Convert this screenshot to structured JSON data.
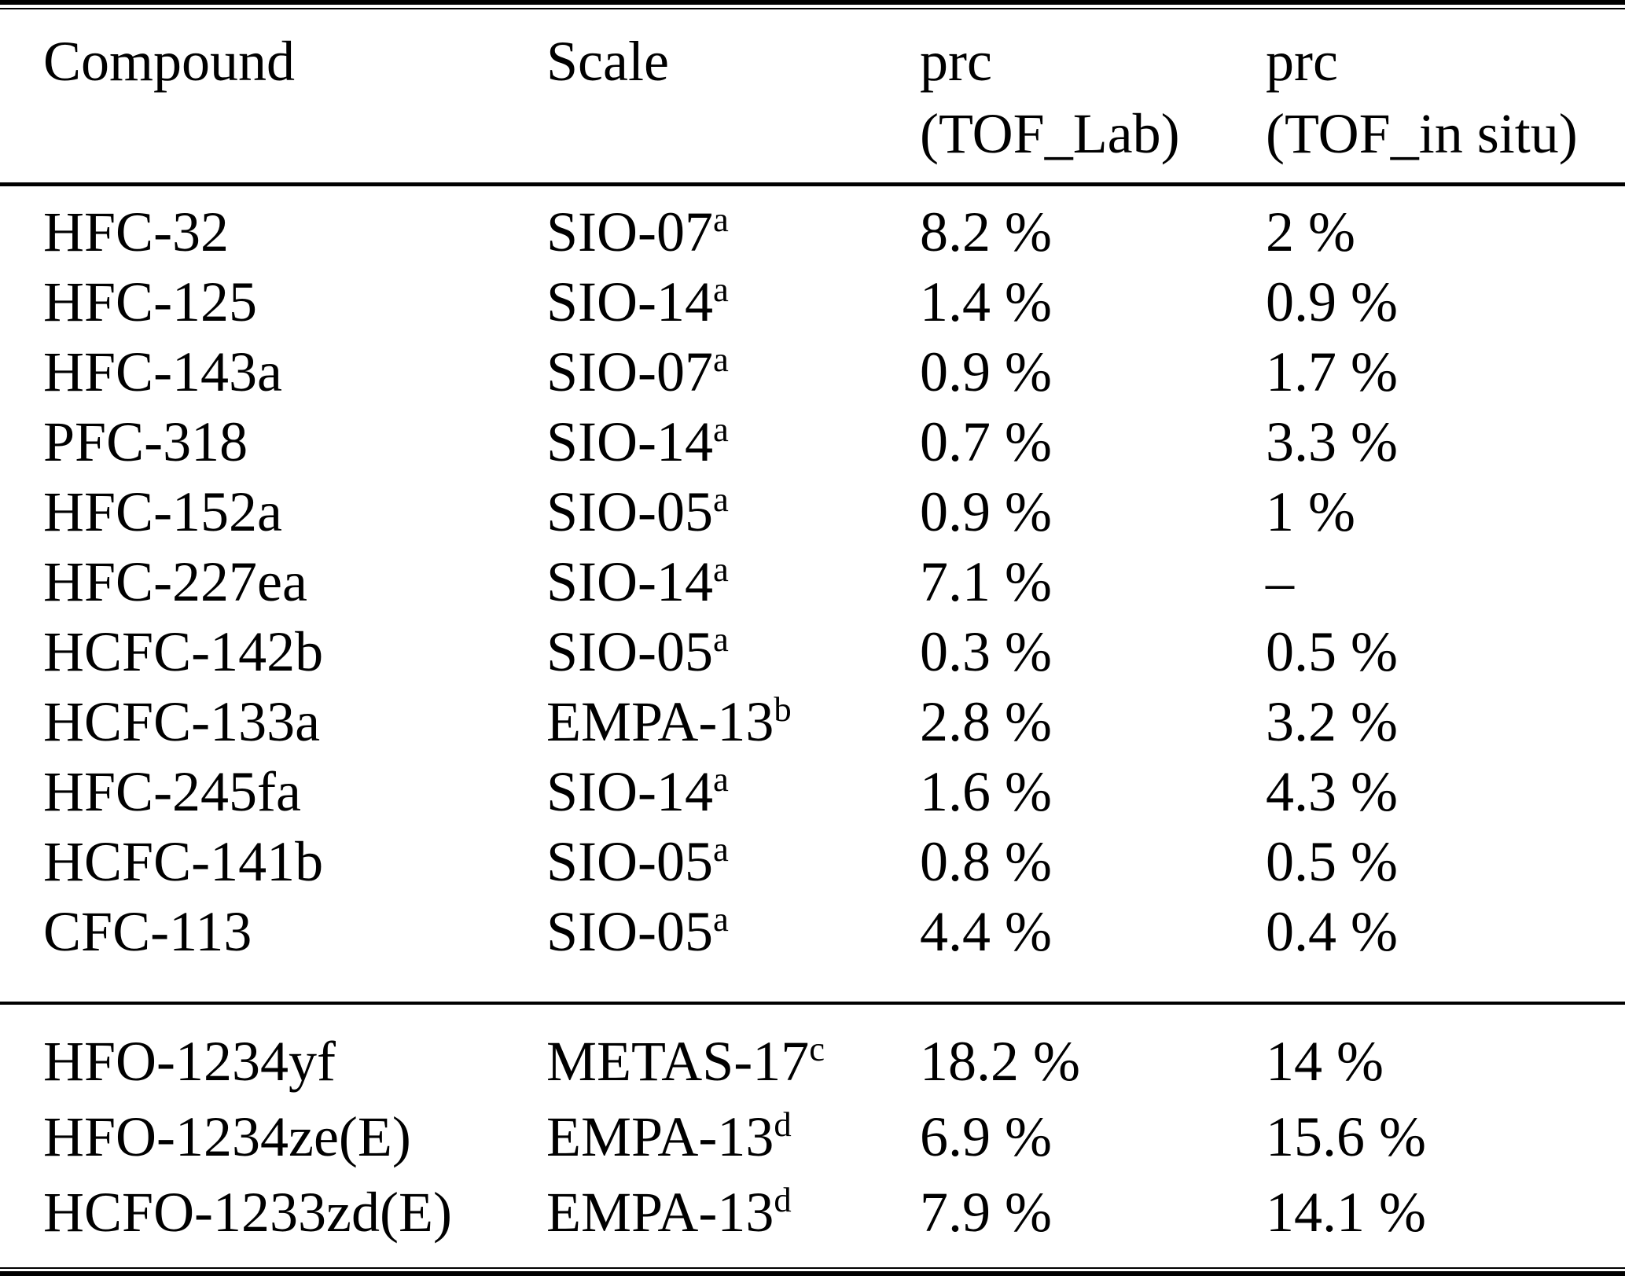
{
  "header": {
    "compound": "Compound",
    "scale": "Scale",
    "prc_lab_line1": "prc",
    "prc_lab_line2": "(TOF_Lab)",
    "prc_insitu_line1": "prc",
    "prc_insitu_line2": "(TOF_in situ)"
  },
  "sections": [
    {
      "rows": [
        {
          "compound": "HFC-32",
          "scale": "SIO-07",
          "scale_sup": "a",
          "prc_tof_lab": "8.2 %",
          "prc_tof_insitu": "2 %"
        },
        {
          "compound": "HFC-125",
          "scale": "SIO-14",
          "scale_sup": "a",
          "prc_tof_lab": "1.4 %",
          "prc_tof_insitu": "0.9 %"
        },
        {
          "compound": "HFC-143a",
          "scale": "SIO-07",
          "scale_sup": "a",
          "prc_tof_lab": "0.9 %",
          "prc_tof_insitu": "1.7 %"
        },
        {
          "compound": "PFC-318",
          "scale": "SIO-14",
          "scale_sup": "a",
          "prc_tof_lab": "0.7 %",
          "prc_tof_insitu": "3.3 %"
        },
        {
          "compound": "HFC-152a",
          "scale": "SIO-05",
          "scale_sup": "a",
          "prc_tof_lab": "0.9 %",
          "prc_tof_insitu": "1 %"
        },
        {
          "compound": "HFC-227ea",
          "scale": "SIO-14",
          "scale_sup": "a",
          "prc_tof_lab": "7.1 %",
          "prc_tof_insitu": "–"
        },
        {
          "compound": "HCFC-142b",
          "scale": "SIO-05",
          "scale_sup": "a",
          "prc_tof_lab": "0.3 %",
          "prc_tof_insitu": "0.5 %"
        },
        {
          "compound": "HCFC-133a",
          "scale": "EMPA-13",
          "scale_sup": "b",
          "prc_tof_lab": "2.8 %",
          "prc_tof_insitu": "3.2 %"
        },
        {
          "compound": "HFC-245fa",
          "scale": "SIO-14",
          "scale_sup": "a",
          "prc_tof_lab": "1.6 %",
          "prc_tof_insitu": "4.3 %"
        },
        {
          "compound": "HCFC-141b",
          "scale": "SIO-05",
          "scale_sup": "a",
          "prc_tof_lab": "0.8 %",
          "prc_tof_insitu": "0.5 %"
        },
        {
          "compound": "CFC-113",
          "scale": "SIO-05",
          "scale_sup": "a",
          "prc_tof_lab": "4.4 %",
          "prc_tof_insitu": "0.4 %"
        }
      ]
    },
    {
      "rows": [
        {
          "compound": "HFO-1234yf",
          "scale": "METAS-17",
          "scale_sup": "c",
          "prc_tof_lab": "18.2 %",
          "prc_tof_insitu": "14 %"
        },
        {
          "compound": "HFO-1234ze(E)",
          "scale": "EMPA-13",
          "scale_sup": "d",
          "prc_tof_lab": "6.9 %",
          "prc_tof_insitu": "15.6 %"
        },
        {
          "compound": "HCFO-1233zd(E)",
          "scale": "EMPA-13",
          "scale_sup": "d",
          "prc_tof_lab": "7.9 %",
          "prc_tof_insitu": "14.1 %"
        }
      ]
    }
  ]
}
